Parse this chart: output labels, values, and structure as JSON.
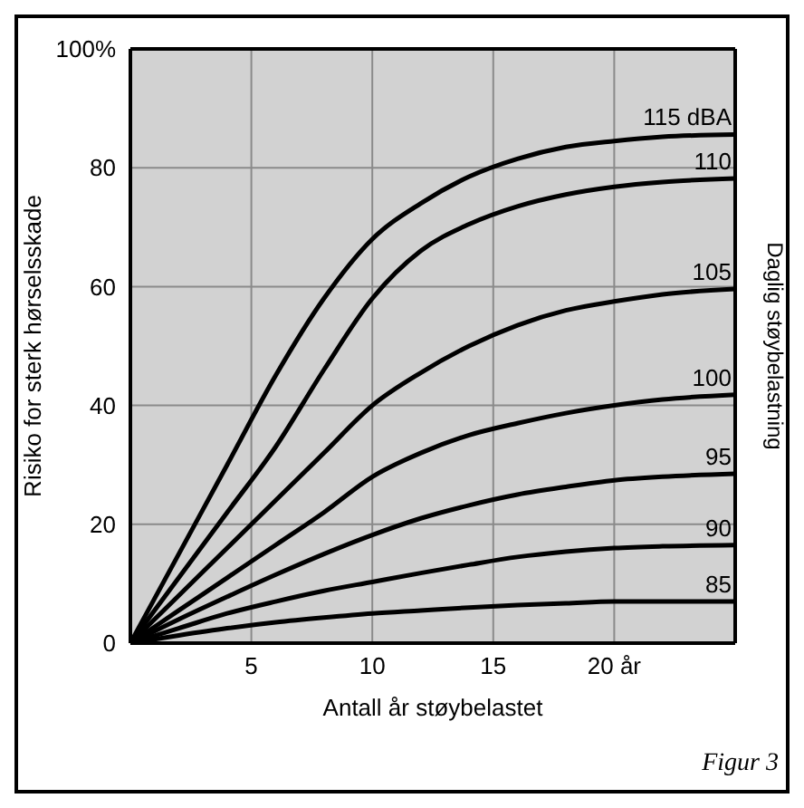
{
  "chart_data": {
    "type": "line",
    "xlabel": "Antall år støybelastet",
    "ylabel": "Risiko for sterk hørselsskade",
    "y2label": "Daglig støybelastning",
    "annotations": [
      "Figur 3"
    ],
    "x": [
      0,
      2,
      4,
      6,
      8,
      10,
      12,
      14,
      16,
      18,
      20,
      22,
      25
    ],
    "series": [
      {
        "name": "115 dBA",
        "color": "#000000",
        "values": [
          0,
          15,
          30,
          45,
          58,
          68,
          74,
          78.5,
          81.5,
          83.5,
          84.5,
          85.2,
          85.6
        ]
      },
      {
        "name": "110",
        "color": "#000000",
        "values": [
          0,
          11,
          22,
          33,
          46,
          58,
          66,
          70.5,
          73.5,
          75.5,
          76.8,
          77.6,
          78.2
        ]
      },
      {
        "name": "105",
        "color": "#000000",
        "values": [
          0,
          8,
          16,
          24,
          32,
          40,
          45.5,
          50,
          53.5,
          56,
          57.5,
          58.7,
          59.6
        ]
      },
      {
        "name": "100",
        "color": "#000000",
        "values": [
          0,
          5.5,
          11,
          16.5,
          22,
          28,
          32,
          35,
          37,
          38.7,
          40,
          41,
          41.8
        ]
      },
      {
        "name": "95",
        "color": "#000000",
        "values": [
          0,
          4,
          7.8,
          11.5,
          15,
          18.2,
          21,
          23.2,
          25,
          26.3,
          27.4,
          28,
          28.5
        ]
      },
      {
        "name": "90",
        "color": "#000000",
        "values": [
          0,
          2.5,
          5,
          7,
          8.8,
          10.3,
          11.8,
          13.2,
          14.5,
          15.4,
          16,
          16.3,
          16.5
        ]
      },
      {
        "name": "85",
        "color": "#000000",
        "values": [
          0,
          1.3,
          2.5,
          3.5,
          4.3,
          5,
          5.5,
          6,
          6.4,
          6.7,
          7,
          7,
          7
        ]
      }
    ],
    "xlim": [
      0,
      25
    ],
    "xticks": [
      5,
      10,
      15,
      {
        "value": 20,
        "label": "20 år"
      }
    ],
    "ylim": [
      0,
      100
    ],
    "yticks": [
      0,
      20,
      40,
      60,
      80,
      {
        "value": 100,
        "label": "100%"
      }
    ],
    "grid": true,
    "marker": "none",
    "line_style": "solid"
  }
}
